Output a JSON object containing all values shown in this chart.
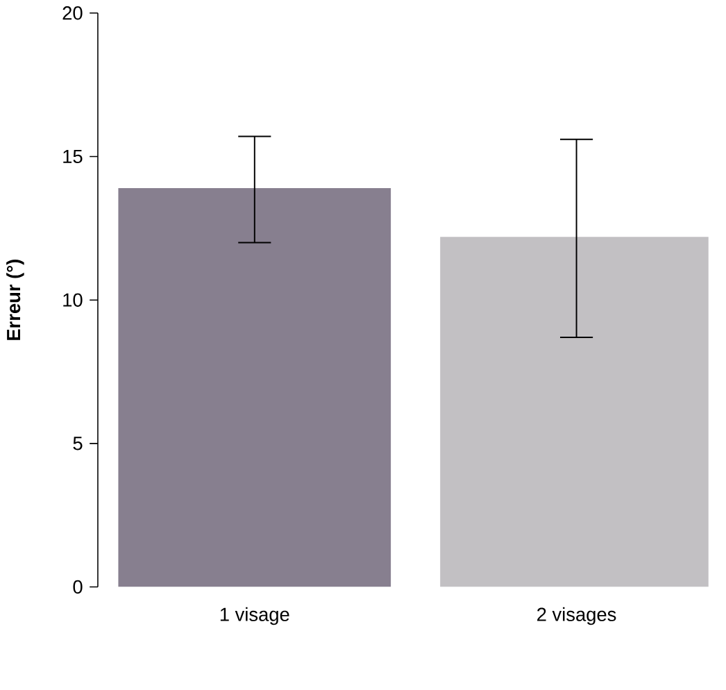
{
  "chart_data": {
    "type": "bar",
    "ylabel": "Erreur (°)",
    "categories": [
      "1 visage",
      "2 visages"
    ],
    "values": [
      13.9,
      12.2
    ],
    "errors": [
      [
        12.0,
        15.7
      ],
      [
        8.7,
        15.6
      ]
    ],
    "colors": [
      "#877f8f",
      "#c2c0c3"
    ],
    "ylim": [
      0,
      20
    ],
    "yticks": [
      0,
      5,
      10,
      15,
      20
    ],
    "grid": false
  }
}
